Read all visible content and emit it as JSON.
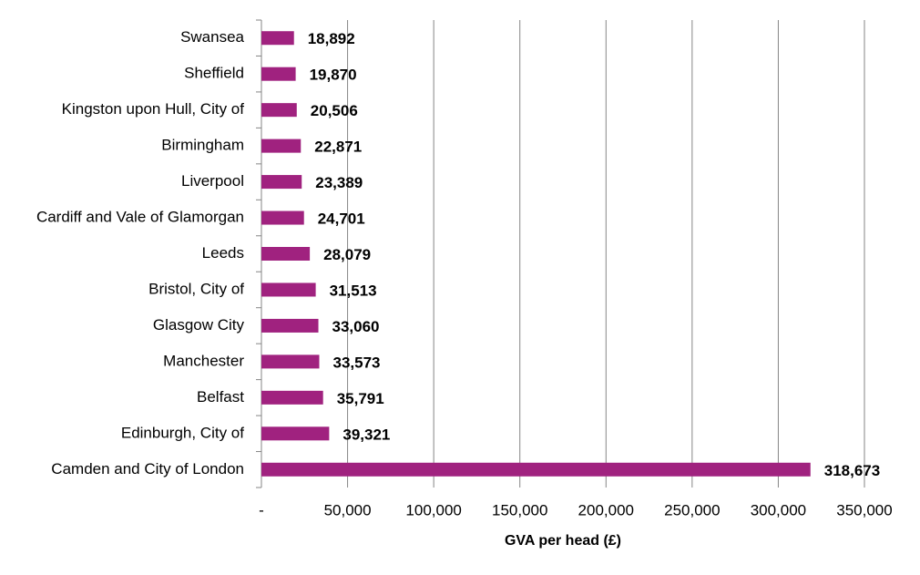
{
  "chart_data": {
    "type": "barh",
    "categories": [
      "Swansea",
      "Sheffield",
      "Kingston upon Hull, City of",
      "Birmingham",
      "Liverpool",
      "Cardiff and Vale of Glamorgan",
      "Leeds",
      "Bristol, City of",
      "Glasgow City",
      "Manchester",
      "Belfast",
      "Edinburgh, City of",
      "Camden and City of London"
    ],
    "values": [
      18892,
      19870,
      20506,
      22871,
      23389,
      24701,
      28079,
      31513,
      33060,
      33573,
      35791,
      39321,
      318673
    ],
    "value_labels": [
      "18,892",
      "19,870",
      "20,506",
      "22,871",
      "23,389",
      "24,701",
      "28,079",
      "31,513",
      "33,060",
      "33,573",
      "35,791",
      "39,321",
      "318,673"
    ],
    "color": "#a0227f",
    "xlabel": "GVA per head (£)",
    "xlim": [
      0,
      350000
    ],
    "xticks": [
      {
        "value": 0,
        "label": "-"
      },
      {
        "value": 50000,
        "label": "50,000"
      },
      {
        "value": 100000,
        "label": "100,000"
      },
      {
        "value": 150000,
        "label": "150,000"
      },
      {
        "value": 200000,
        "label": "200,000"
      },
      {
        "value": 250000,
        "label": "250,000"
      },
      {
        "value": 300000,
        "label": "300,000"
      },
      {
        "value": 350000,
        "label": "350,000"
      }
    ],
    "grid": true
  }
}
